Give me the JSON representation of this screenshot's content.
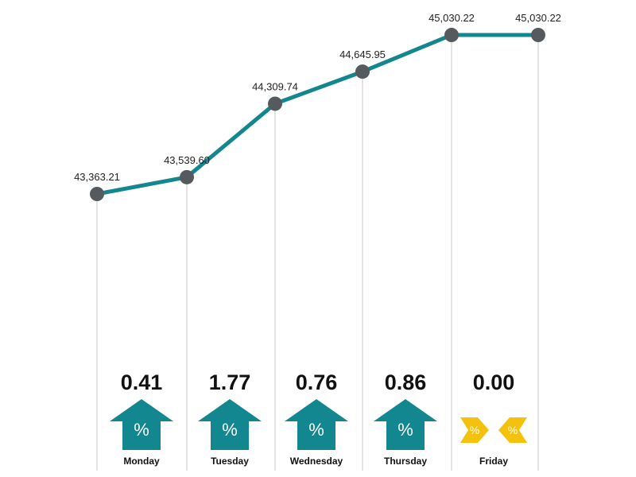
{
  "chart_data": {
    "type": "line",
    "title": "",
    "xlabel": "",
    "ylabel": "",
    "categories": [
      "Monday",
      "Tuesday",
      "Wednesday",
      "Thursday",
      "Friday"
    ],
    "points": [
      {
        "label": "43,363.21",
        "value": 43363.21
      },
      {
        "label": "43,539.60",
        "value": 43539.6
      },
      {
        "label": "44,309.74",
        "value": 44309.74
      },
      {
        "label": "44,645.95",
        "value": 44645.95
      },
      {
        "label": "45,030.22",
        "value": 45030.22
      },
      {
        "label": "45,030.22",
        "value": 45030.22
      }
    ],
    "ylim": [
      43363.21,
      45030.22
    ],
    "daily_change": [
      {
        "day": "Monday",
        "percent": "0.41",
        "direction": "up"
      },
      {
        "day": "Tuesday",
        "percent": "1.77",
        "direction": "up"
      },
      {
        "day": "Wednesday",
        "percent": "0.76",
        "direction": "up"
      },
      {
        "day": "Thursday",
        "percent": "0.86",
        "direction": "up"
      },
      {
        "day": "Friday",
        "percent": "0.00",
        "direction": "unchanged"
      }
    ],
    "percent_symbol": "%",
    "colors": {
      "line": "#13878f",
      "marker": "#555a5e",
      "up": "#13878f",
      "unchanged": "#f4c20d",
      "gridline": "#c8c8c8"
    },
    "grid": false,
    "legend": "none"
  }
}
